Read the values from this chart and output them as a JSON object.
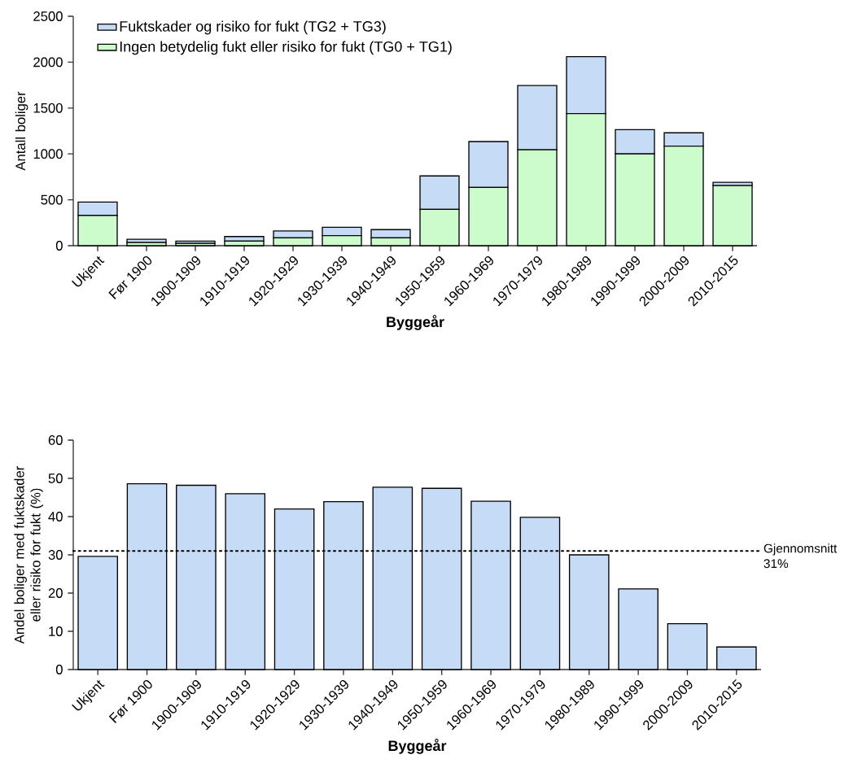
{
  "chart_data": [
    {
      "type": "bar",
      "stacked": true,
      "xlabel": "Byggeår",
      "ylabel": "Antall boliger",
      "categories": [
        "Ukjent",
        "Før 1900",
        "1900-1909",
        "1910-1919",
        "1920-1929",
        "1930-1939",
        "1940-1949",
        "1950-1959",
        "1960-1969",
        "1970-1979",
        "1980-1989",
        "1990-1999",
        "2000-2009",
        "2010-2015"
      ],
      "series": [
        {
          "name": "Ingen betydelig fukt eller risiko for fukt (TG0 + TG1)",
          "color": "#ccfccc",
          "values": [
            330,
            35,
            25,
            50,
            85,
            110,
            85,
            395,
            635,
            1045,
            1440,
            1000,
            1085,
            655
          ]
        },
        {
          "name": "Fuktskader og risiko for fukt (TG2 + TG3)",
          "color": "#c6dbf5",
          "values": [
            145,
            35,
            25,
            50,
            75,
            90,
            90,
            365,
            500,
            700,
            620,
            265,
            145,
            35
          ]
        }
      ],
      "ylim": [
        0,
        2500
      ],
      "yticks": [
        0,
        500,
        1000,
        1500,
        2000,
        2500
      ],
      "legend": "top left"
    },
    {
      "type": "bar",
      "xlabel": "Byggeår",
      "ylabel": "Andel boliger med fuktskader eller risiko for fukt (%)",
      "categories": [
        "Ukjent",
        "Før 1900",
        "1900-1909",
        "1910-1919",
        "1920-1929",
        "1930-1939",
        "1940-1949",
        "1950-1959",
        "1960-1969",
        "1970-1979",
        "1980-1989",
        "1990-1999",
        "2000-2009",
        "2010-2015"
      ],
      "series": [
        {
          "color": "#c6dbf5",
          "values": [
            29.6,
            48.6,
            48.2,
            46.0,
            42.0,
            43.9,
            47.7,
            47.4,
            44.0,
            39.8,
            30.0,
            21.1,
            12.0,
            5.9
          ]
        }
      ],
      "ylim": [
        0,
        60
      ],
      "yticks": [
        0,
        10,
        20,
        30,
        40,
        50,
        60
      ],
      "ref_lines": [
        {
          "axis": "y",
          "value": 31,
          "label": "Gjennomsnitt 31%",
          "color": "#000000",
          "line_style": "dotted"
        }
      ]
    }
  ]
}
